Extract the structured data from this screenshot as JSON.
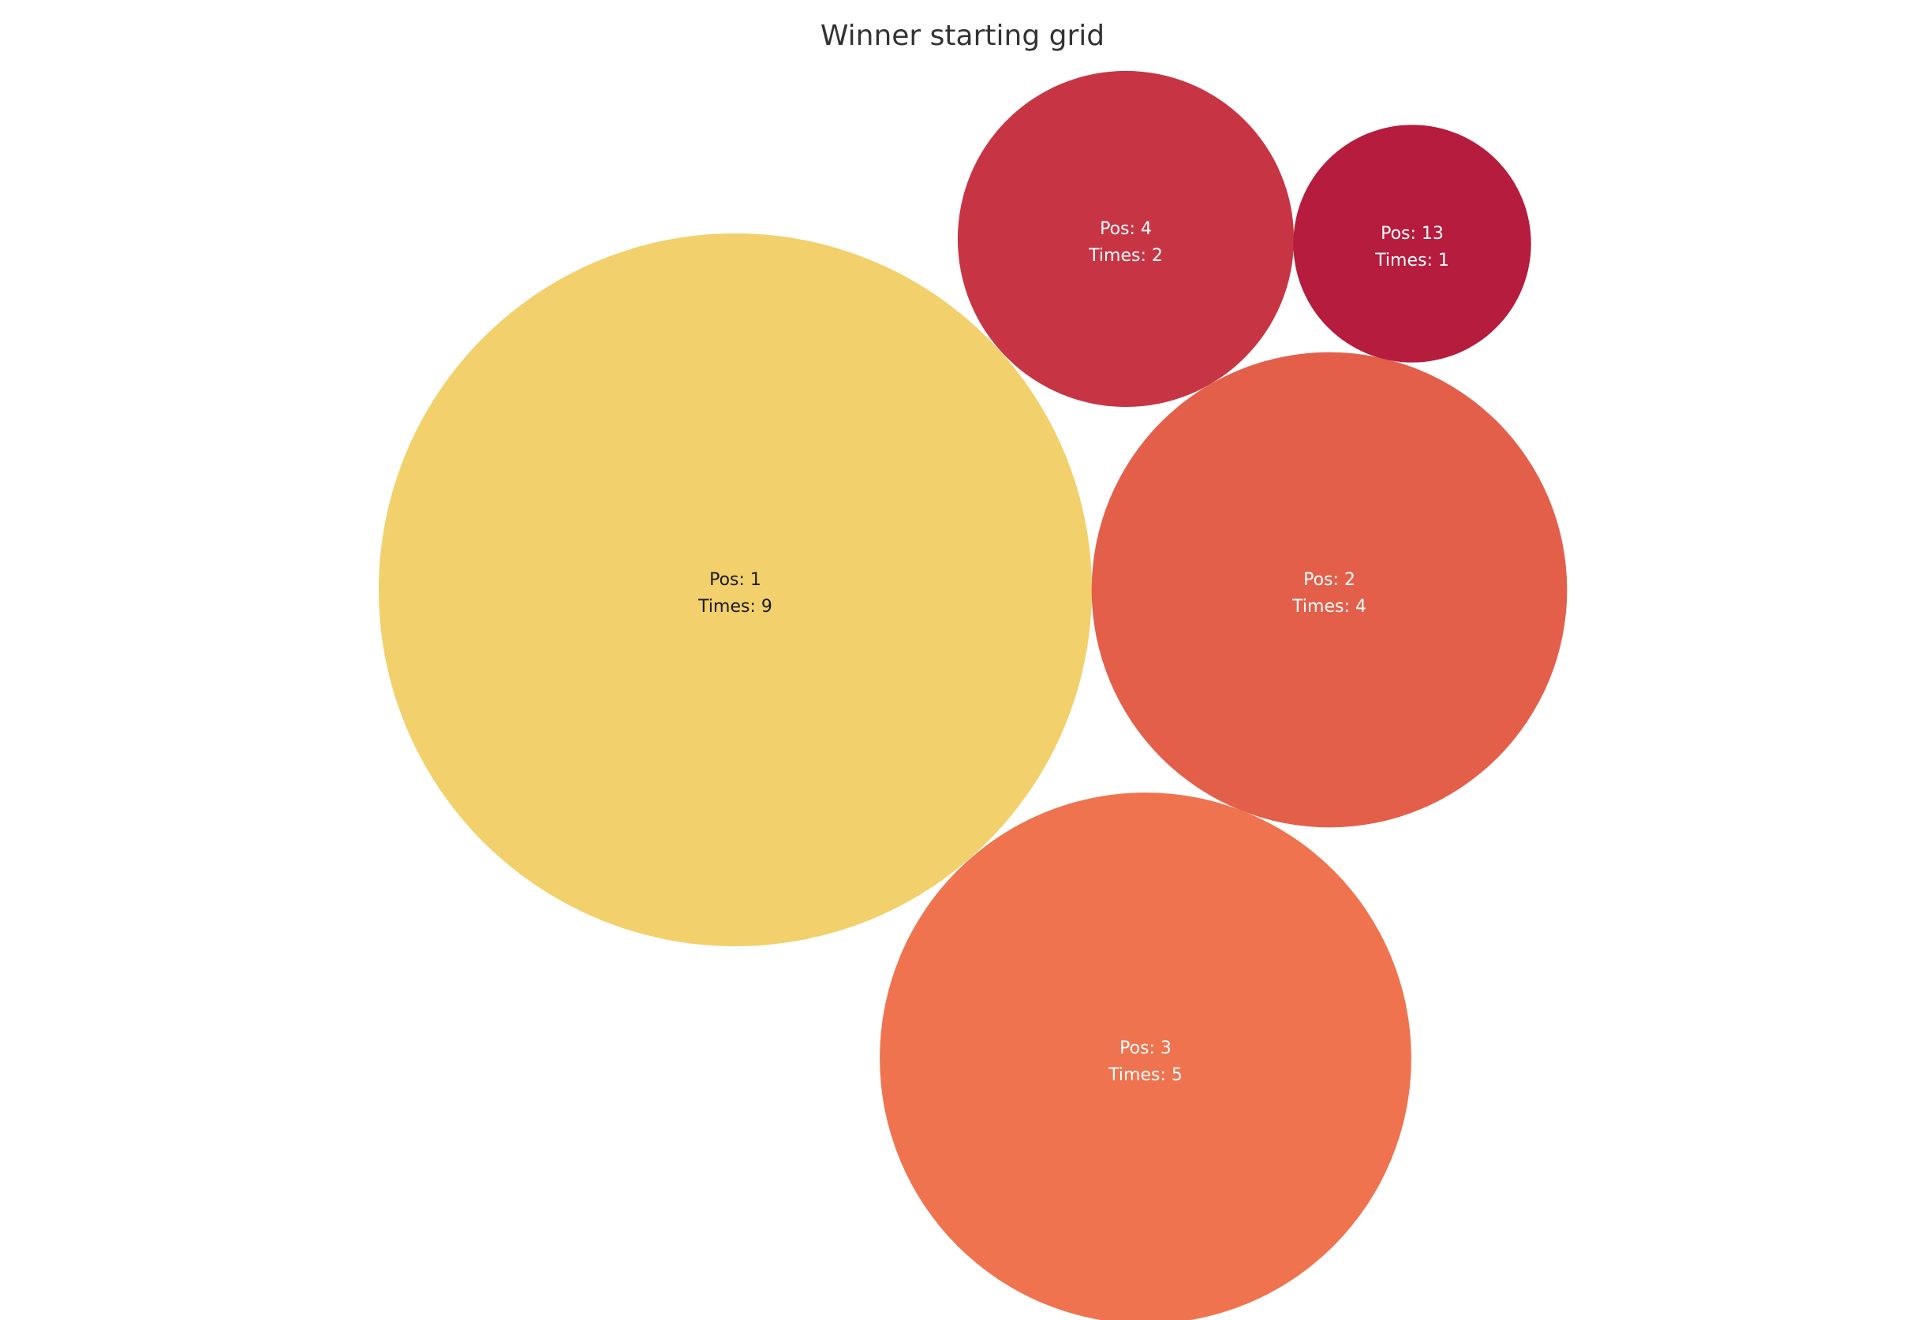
{
  "chart_data": {
    "type": "bubble",
    "title": "Winner starting grid",
    "pos_prefix": "Pos: ",
    "times_prefix": "Times: ",
    "bubbles": [
      {
        "pos": "1",
        "times": 9,
        "color": "#f2d06b",
        "label_color": "#1a1a1a"
      },
      {
        "pos": "2",
        "times": 4,
        "color": "#e35f4a",
        "label_color": "#ffffff"
      },
      {
        "pos": "3",
        "times": 5,
        "color": "#ee734e",
        "label_color": "#ffffff"
      },
      {
        "pos": "4",
        "times": 2,
        "color": "#c73544",
        "label_color": "#ffffff"
      },
      {
        "pos": "13",
        "times": 1,
        "color": "#b51c3d",
        "label_color": "#ffffff"
      }
    ]
  }
}
